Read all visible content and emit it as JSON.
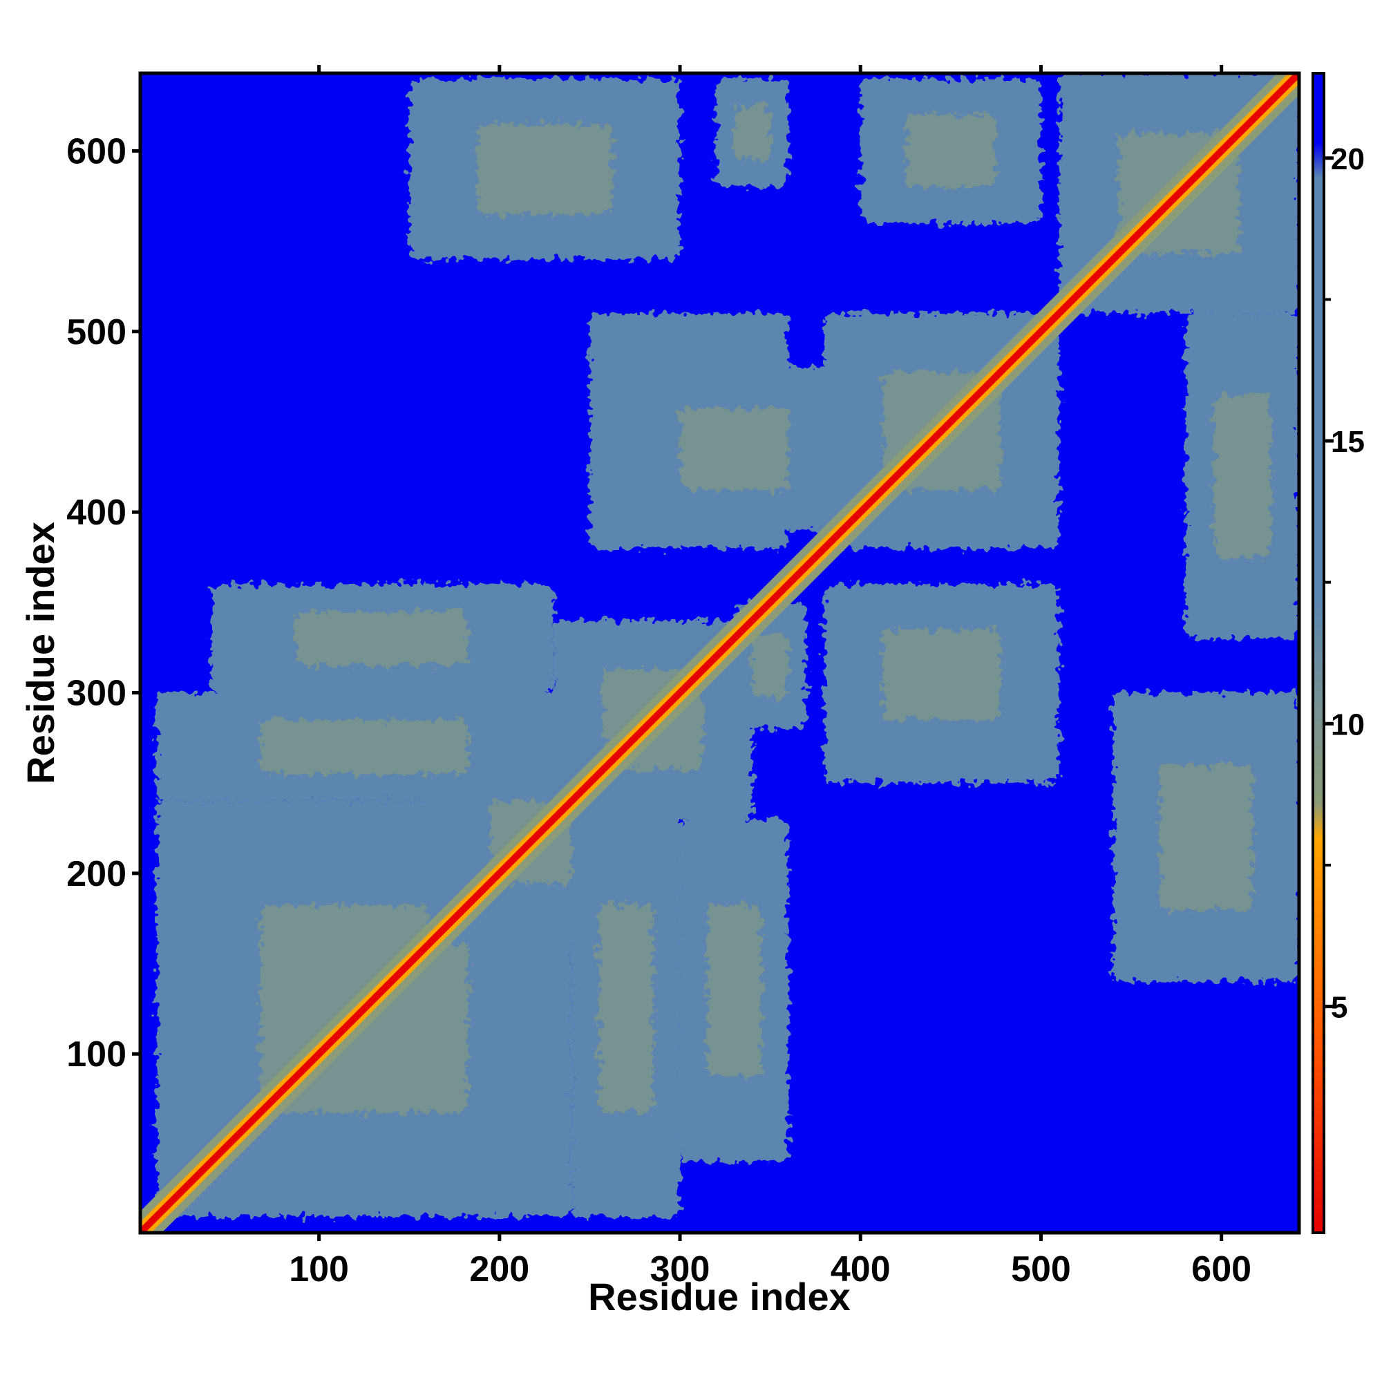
{
  "chart_data": {
    "type": "heatmap",
    "xlabel": "Residue index",
    "ylabel": "Residue index",
    "xlim": [
      1,
      643
    ],
    "ylim": [
      1,
      643
    ],
    "x_ticks": [
      100,
      200,
      300,
      400,
      500,
      600
    ],
    "y_ticks": [
      100,
      200,
      300,
      400,
      500,
      600
    ],
    "colorbar": {
      "range": [
        1,
        21.5
      ],
      "ticks": [
        5,
        10,
        15,
        20
      ],
      "colors": {
        "close": "#e60000",
        "near": "#ffa500",
        "mid": "#8c9c78",
        "far": "#5b85b0",
        "background": "#0000f5"
      }
    },
    "diagonal": {
      "from": 1,
      "to": 643
    },
    "contact_regions": [
      {
        "x": [
          10,
          160
        ],
        "y": [
          10,
          160
        ]
      },
      {
        "x": [
          10,
          240
        ],
        "y": [
          10,
          240
        ]
      },
      {
        "x": [
          160,
          300
        ],
        "y": [
          160,
          300
        ]
      },
      {
        "x": [
          230,
          340
        ],
        "y": [
          230,
          340
        ]
      },
      {
        "x": [
          10,
          240
        ],
        "y": [
          240,
          300
        ]
      },
      {
        "x": [
          240,
          300
        ],
        "y": [
          10,
          240
        ]
      },
      {
        "x": [
          40,
          230
        ],
        "y": [
          300,
          360
        ]
      },
      {
        "x": [
          300,
          360
        ],
        "y": [
          40,
          230
        ]
      },
      {
        "x": [
          330,
          370
        ],
        "y": [
          280,
          350
        ]
      },
      {
        "x": [
          380,
          510
        ],
        "y": [
          380,
          510
        ]
      },
      {
        "x": [
          250,
          360
        ],
        "y": [
          380,
          510
        ]
      },
      {
        "x": [
          380,
          510
        ],
        "y": [
          250,
          360
        ]
      },
      {
        "x": [
          270,
          390
        ],
        "y": [
          390,
          480
        ]
      },
      {
        "x": [
          380,
          510
        ],
        "y": [
          260,
          360
        ]
      },
      {
        "x": [
          510,
          643
        ],
        "y": [
          510,
          643
        ]
      },
      {
        "x": [
          150,
          300
        ],
        "y": [
          540,
          640
        ]
      },
      {
        "x": [
          320,
          360
        ],
        "y": [
          580,
          640
        ]
      },
      {
        "x": [
          400,
          500
        ],
        "y": [
          560,
          640
        ]
      },
      {
        "x": [
          540,
          643
        ],
        "y": [
          140,
          300
        ]
      },
      {
        "x": [
          580,
          643
        ],
        "y": [
          330,
          510
        ]
      }
    ]
  }
}
